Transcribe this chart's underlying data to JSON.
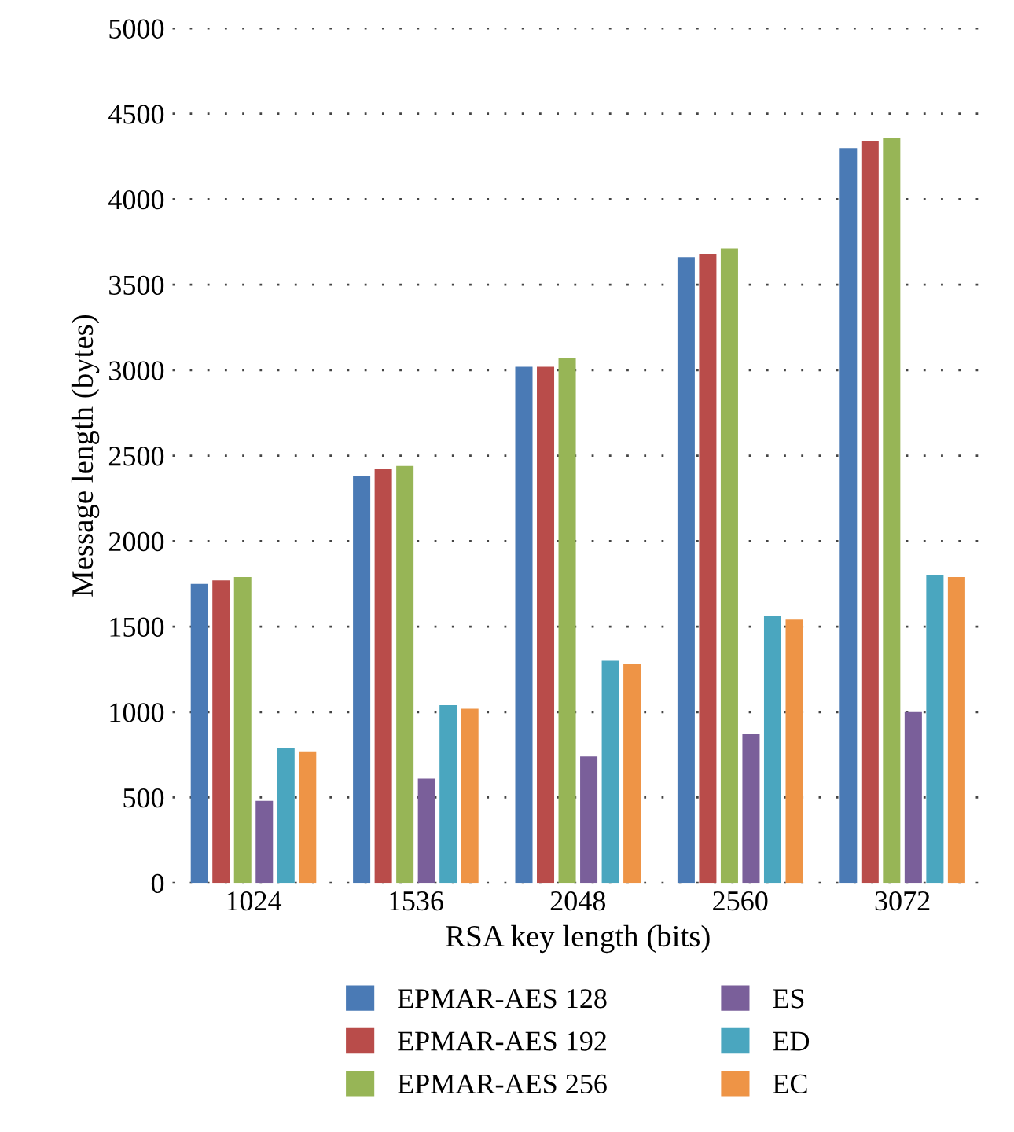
{
  "chart_data": {
    "type": "bar",
    "xlabel": "RSA key length (bits)",
    "ylabel": "Message length (bytes)",
    "categories": [
      "1024",
      "1536",
      "2048",
      "2560",
      "3072"
    ],
    "series": [
      {
        "name": "EPMAR-AES 128",
        "color": "#4a7ab5",
        "values": [
          1750,
          2380,
          3020,
          3660,
          4300
        ]
      },
      {
        "name": "EPMAR-AES 192",
        "color": "#b94c4a",
        "values": [
          1770,
          2420,
          3020,
          3680,
          4340
        ]
      },
      {
        "name": "EPMAR-AES 256",
        "color": "#97b556",
        "values": [
          1790,
          2440,
          3070,
          3710,
          4360
        ]
      },
      {
        "name": "ES",
        "color": "#7a5f9a",
        "values": [
          480,
          610,
          740,
          870,
          1000
        ]
      },
      {
        "name": "ED",
        "color": "#4aa6bf",
        "values": [
          790,
          1040,
          1300,
          1560,
          1800
        ]
      },
      {
        "name": "EC",
        "color": "#ee9446",
        "values": [
          770,
          1020,
          1280,
          1540,
          1790
        ]
      }
    ],
    "ylim": [
      0,
      5000
    ],
    "yticks": [
      0,
      500,
      1000,
      1500,
      2000,
      2500,
      3000,
      3500,
      4000,
      4500,
      5000
    ],
    "grid": "y",
    "legend": "bottom"
  }
}
